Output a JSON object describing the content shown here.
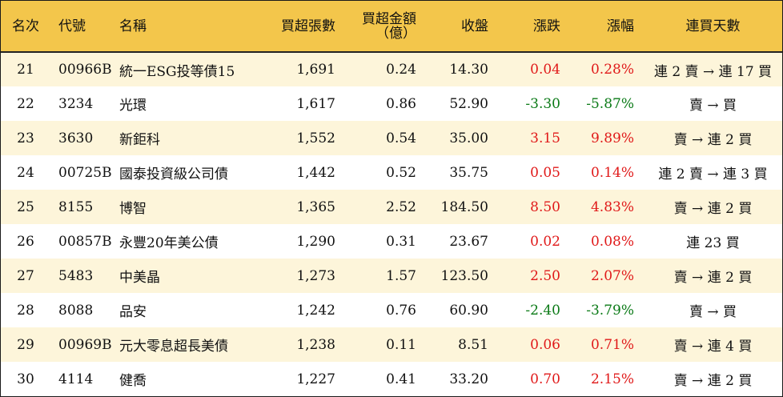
{
  "headers": {
    "rank": "名次",
    "code": "代號",
    "name": "名稱",
    "buy_shares": "買超張數",
    "buy_amount_line1": "買超金額",
    "buy_amount_line2": "（億）",
    "close": "收盤",
    "change": "漲跌",
    "pct": "漲幅",
    "days": "連買天數"
  },
  "colors": {
    "header_bg": "#f3c64b",
    "stripe_bg": "#fdf5da",
    "up": "#e01919",
    "down": "#0b7a17"
  },
  "rows": [
    {
      "rank": "21",
      "code": "00966B",
      "name": "統一ESG投等債15",
      "shares": "1,691",
      "amount": "0.24",
      "close": "14.30",
      "change": "0.04",
      "pct": "0.28%",
      "dir": "up",
      "days": "連 2 賣 → 連 17 買"
    },
    {
      "rank": "22",
      "code": "3234",
      "name": "光環",
      "shares": "1,617",
      "amount": "0.86",
      "close": "52.90",
      "change": "-3.30",
      "pct": "-5.87%",
      "dir": "down",
      "days": "賣 → 買"
    },
    {
      "rank": "23",
      "code": "3630",
      "name": "新鉅科",
      "shares": "1,552",
      "amount": "0.54",
      "close": "35.00",
      "change": "3.15",
      "pct": "9.89%",
      "dir": "up",
      "days": "賣 → 連 2 買"
    },
    {
      "rank": "24",
      "code": "00725B",
      "name": "國泰投資級公司債",
      "shares": "1,442",
      "amount": "0.52",
      "close": "35.75",
      "change": "0.05",
      "pct": "0.14%",
      "dir": "up",
      "days": "連 2 賣 → 連 3 買"
    },
    {
      "rank": "25",
      "code": "8155",
      "name": "博智",
      "shares": "1,365",
      "amount": "2.52",
      "close": "184.50",
      "change": "8.50",
      "pct": "4.83%",
      "dir": "up",
      "days": "賣 → 連 2 買"
    },
    {
      "rank": "26",
      "code": "00857B",
      "name": "永豐20年美公債",
      "shares": "1,290",
      "amount": "0.31",
      "close": "23.67",
      "change": "0.02",
      "pct": "0.08%",
      "dir": "up",
      "days": "連 23 買"
    },
    {
      "rank": "27",
      "code": "5483",
      "name": "中美晶",
      "shares": "1,273",
      "amount": "1.57",
      "close": "123.50",
      "change": "2.50",
      "pct": "2.07%",
      "dir": "up",
      "days": "賣 → 連 2 買"
    },
    {
      "rank": "28",
      "code": "8088",
      "name": "品安",
      "shares": "1,242",
      "amount": "0.76",
      "close": "60.90",
      "change": "-2.40",
      "pct": "-3.79%",
      "dir": "down",
      "days": "賣 → 買"
    },
    {
      "rank": "29",
      "code": "00969B",
      "name": "元大零息超長美債",
      "shares": "1,238",
      "amount": "0.11",
      "close": "8.51",
      "change": "0.06",
      "pct": "0.71%",
      "dir": "up",
      "days": "賣 → 連 4 買"
    },
    {
      "rank": "30",
      "code": "4114",
      "name": "健喬",
      "shares": "1,227",
      "amount": "0.41",
      "close": "33.20",
      "change": "0.70",
      "pct": "2.15%",
      "dir": "up",
      "days": "賣 → 連 2 買"
    }
  ]
}
